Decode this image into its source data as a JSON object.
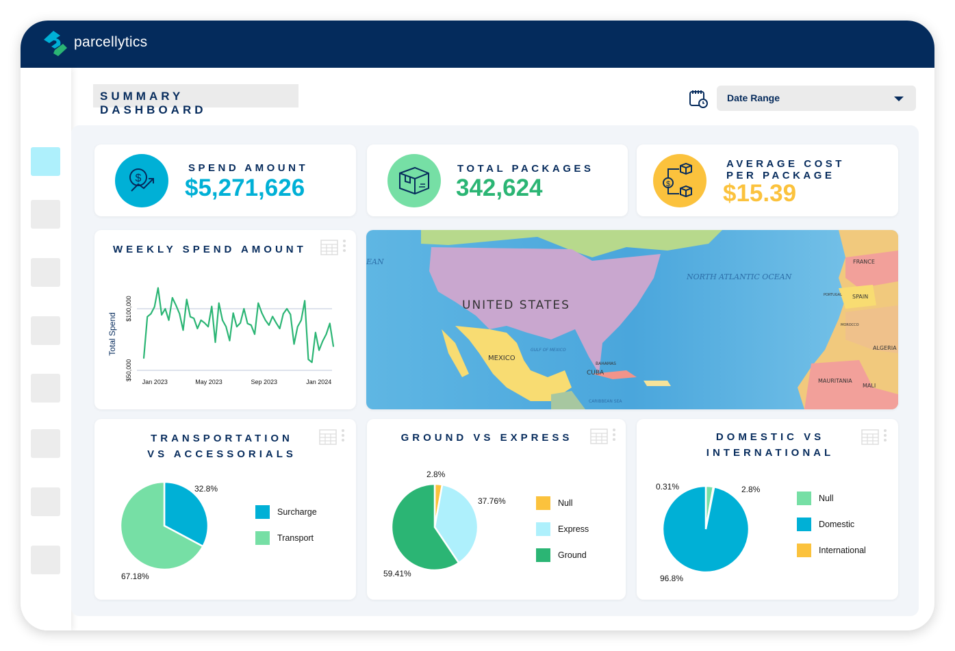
{
  "app": {
    "brand": "parcellytics"
  },
  "header": {
    "title": "SUMMARY DASHBOARD",
    "date_range": {
      "label": "Date Range"
    }
  },
  "sidebar": {
    "items": [
      {
        "active": true
      },
      {
        "active": false
      },
      {
        "active": false
      },
      {
        "active": false
      },
      {
        "active": false
      },
      {
        "active": false
      },
      {
        "active": false
      },
      {
        "active": false
      }
    ]
  },
  "colors": {
    "navy": "#062b5c",
    "cyan": "#00b0d6",
    "green": "#2bb574",
    "lightgreen": "#76dfa5",
    "yellow": "#fbc23d",
    "lightcyan": "#aef0fc"
  },
  "kpis": [
    {
      "label": "SPEND AMOUNT",
      "value": "$5,271,626",
      "icon": "dollar-growth-icon"
    },
    {
      "label": "TOTAL PACKAGES",
      "value": "342,624",
      "icon": "package-box-icon"
    },
    {
      "label_line1": "AVERAGE COST",
      "label_line2": "PER PACKAGE",
      "value": "$15.39",
      "icon": "cost-per-package-icon"
    }
  ],
  "map": {
    "labels": {
      "us": "UNITED STATES",
      "ocean": "NORTH ATLANTIC OCEAN",
      "ocean_w": "EAN",
      "mexico": "MEXICO",
      "gulf": "GULF OF MEXICO",
      "cuba": "CUBA",
      "bahamas": "BAHAMAS",
      "caribbean": "CARIBBEAN SEA",
      "france": "FRANCE",
      "spain": "SPAIN",
      "portugal": "PORTUGAL",
      "morocco": "MOROCCO",
      "algeria": "ALGERIA",
      "mauritania": "MAURITANIA",
      "mali": "MALI"
    }
  },
  "chart_data": [
    {
      "type": "line",
      "title": "WEEKLY SPEND AMOUNT",
      "ylabel": "Total Spend",
      "xlabel": "",
      "x_ticks": [
        "Jan 2023",
        "May 2023",
        "Sep 2023",
        "Jan 2024"
      ],
      "y_ticks": [
        "$50,000",
        "$100,000"
      ],
      "xlim": [
        "2022-12-01",
        "2024-02-07"
      ],
      "ylim_ticks": [
        50000,
        100000
      ],
      "grid": true,
      "color": "#2bb574",
      "values": [
        59800,
        93500,
        95900,
        101500,
        116900,
        95000,
        100000,
        90700,
        108900,
        102800,
        95900,
        82600,
        107600,
        93500,
        92200,
        83900,
        90700,
        88500,
        85400,
        101900,
        72800,
        104600,
        90700,
        85400,
        74100,
        96500,
        85400,
        88500,
        100000,
        88000,
        86700,
        79300,
        104600,
        96500,
        90700,
        86700,
        93700,
        88500,
        83900,
        95900,
        100000,
        95400,
        71300,
        85400,
        90700,
        106500,
        58900,
        56500,
        80700,
        66300,
        73700,
        79300,
        88100,
        69400
      ]
    },
    {
      "type": "pie",
      "title_line1": "TRANSPORTATION",
      "title_line2": "VS ACCESSORIALS",
      "legend": "right",
      "slices": [
        {
          "name": "Surcharge",
          "value": 32.8,
          "label": "32.8%",
          "color": "#00b0d6"
        },
        {
          "name": "Transport",
          "value": 67.18,
          "label": "67.18%",
          "color": "#76dfa5"
        }
      ]
    },
    {
      "type": "pie",
      "title_line1": "GROUND VS EXPRESS",
      "legend": "right",
      "slices": [
        {
          "name": "Null",
          "value": 2.8,
          "label": "2.8%",
          "color": "#fbc23d"
        },
        {
          "name": "Express",
          "value": 37.76,
          "label": "37.76%",
          "color": "#aef0fc"
        },
        {
          "name": "Ground",
          "value": 59.41,
          "label": "59.41%",
          "color": "#2bb574"
        }
      ]
    },
    {
      "type": "pie",
      "title_line1": "DOMESTIC VS",
      "title_line2": "INTERNATIONAL",
      "legend": "right",
      "slices": [
        {
          "name": "Null",
          "value": 2.8,
          "label": "2.8%",
          "color": "#76dfa5"
        },
        {
          "name": "International",
          "value": 0.31,
          "label": "0.31%",
          "color": "#fbc23d"
        },
        {
          "name": "Domestic",
          "value": 96.8,
          "label": "96.8%",
          "color": "#00b0d6"
        }
      ]
    }
  ]
}
